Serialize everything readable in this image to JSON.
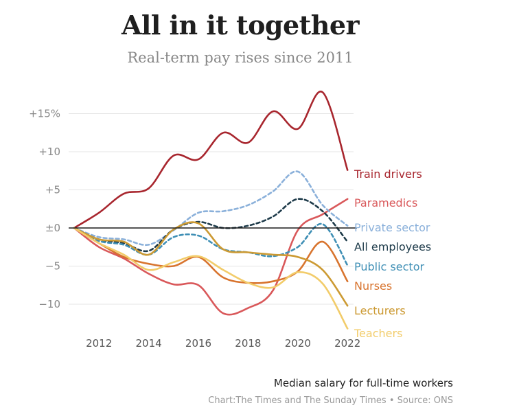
{
  "header": {
    "title": "All in it together",
    "subtitle": "Real-term pay rises since 2011"
  },
  "footer": {
    "note": "Median salary for full-time workers",
    "source": "Chart:The Times and The Sunday Times • Source: ONS"
  },
  "chart_data": {
    "type": "line",
    "title": "All in it together",
    "subtitle": "Real-term pay rises since 2011",
    "xlabel": "",
    "ylabel": "",
    "xlim": [
      2011,
      2022.3
    ],
    "ylim": [
      -12,
      18
    ],
    "xticks": [
      2012,
      2014,
      2016,
      2018,
      2020,
      2022
    ],
    "xtick_labels": [
      "2012",
      "2014",
      "2016",
      "2018",
      "2020",
      "2022"
    ],
    "yticks": [
      -10,
      -5,
      0,
      5,
      10,
      15
    ],
    "ytick_labels": [
      "−10",
      "−5",
      "±0",
      "+5",
      "+10",
      "+15%"
    ],
    "grid": true,
    "legend": "labels at line ends (right)",
    "x": [
      2011,
      2012,
      2013,
      2014,
      2015,
      2016,
      2017,
      2018,
      2019,
      2020,
      2021,
      2022
    ],
    "series": [
      {
        "name": "Train drivers",
        "color": "#a8262e",
        "dash": false,
        "values": [
          0,
          2,
          4.5,
          5.2,
          9.5,
          9,
          12.5,
          11.2,
          15.3,
          13,
          17.8,
          7.6
        ]
      },
      {
        "name": "Paramedics",
        "color": "#d9585a",
        "dash": false,
        "values": [
          0,
          -2.5,
          -4,
          -6,
          -7.4,
          -7.5,
          -11.2,
          -10.5,
          -8.2,
          -0.3,
          1.8,
          3.8
        ]
      },
      {
        "name": "Private sector",
        "color": "#8ab0da",
        "dash": true,
        "values": [
          0,
          -1.2,
          -1.5,
          -2.2,
          -0.3,
          2,
          2.2,
          3,
          4.8,
          7.4,
          3,
          0.3
        ]
      },
      {
        "name": "All employees",
        "color": "#1e3b4a",
        "dash": true,
        "values": [
          0,
          -1.5,
          -2,
          -3,
          -0.2,
          0.8,
          0,
          0.3,
          1.5,
          3.8,
          2.2,
          -1.8
        ]
      },
      {
        "name": "Public sector",
        "color": "#3f8fb5",
        "dash": true,
        "values": [
          0,
          -1.7,
          -2.2,
          -3.5,
          -1.2,
          -1,
          -2.8,
          -3.2,
          -3.7,
          -2.5,
          0.5,
          -4.9
        ]
      },
      {
        "name": "Nurses",
        "color": "#d8742e",
        "dash": false,
        "values": [
          0,
          -2,
          -3.8,
          -4.7,
          -5,
          -3.8,
          -6.5,
          -7.2,
          -7,
          -5.7,
          -1.8,
          -7
        ]
      },
      {
        "name": "Lecturers",
        "color": "#cc9a33",
        "dash": false,
        "values": [
          0,
          -1.5,
          -1.8,
          -3.5,
          -0.2,
          0.6,
          -2.8,
          -3.2,
          -3.5,
          -3.8,
          -5.5,
          -10.2
        ]
      },
      {
        "name": "Teachers",
        "color": "#f2cc6a",
        "dash": false,
        "values": [
          0,
          -2,
          -3.5,
          -5.5,
          -4.5,
          -3.7,
          -5.5,
          -7.2,
          -7.8,
          -5.8,
          -7.3,
          -13.2
        ]
      }
    ]
  }
}
